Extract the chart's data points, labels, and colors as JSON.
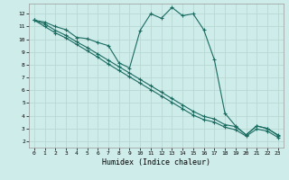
{
  "background_color": "#ceecea",
  "grid_color": "#b8d8d4",
  "line_color": "#1a6b60",
  "xlabel": "Humidex (Indice chaleur)",
  "xlim": [
    -0.5,
    23.5
  ],
  "ylim": [
    1.5,
    12.8
  ],
  "yticks": [
    2,
    3,
    4,
    5,
    6,
    7,
    8,
    9,
    10,
    11,
    12
  ],
  "xticks": [
    0,
    1,
    2,
    3,
    4,
    5,
    6,
    7,
    8,
    9,
    10,
    11,
    12,
    13,
    14,
    15,
    16,
    17,
    18,
    19,
    20,
    21,
    22,
    23
  ],
  "line1_x": [
    0,
    1,
    2,
    3,
    4,
    5,
    6,
    7,
    8,
    9,
    10,
    11,
    12,
    13,
    14,
    15,
    16,
    17,
    18,
    19,
    20,
    21,
    22,
    23
  ],
  "line1_y": [
    11.5,
    11.35,
    11.0,
    10.75,
    10.15,
    10.05,
    9.75,
    9.5,
    8.15,
    7.75,
    10.7,
    12.0,
    11.65,
    12.5,
    11.85,
    12.0,
    10.75,
    8.4,
    4.2,
    3.2,
    2.5,
    3.2,
    3.0,
    2.5
  ],
  "line2_x": [
    0,
    1,
    2,
    3,
    4,
    5,
    6,
    7,
    8,
    9,
    10,
    11,
    12,
    13,
    14,
    15,
    16,
    17,
    18,
    19,
    20,
    21,
    22,
    23
  ],
  "line2_y": [
    11.5,
    11.2,
    10.7,
    10.3,
    9.8,
    9.35,
    8.85,
    8.35,
    7.85,
    7.35,
    6.85,
    6.35,
    5.85,
    5.35,
    4.85,
    4.35,
    3.95,
    3.75,
    3.3,
    3.15,
    2.5,
    3.2,
    3.0,
    2.45
  ],
  "line3_x": [
    0,
    1,
    2,
    3,
    4,
    5,
    6,
    7,
    8,
    9,
    10,
    11,
    12,
    13,
    14,
    15,
    16,
    17,
    18,
    19,
    20,
    21,
    22,
    23
  ],
  "line3_y": [
    11.5,
    11.0,
    10.5,
    10.1,
    9.6,
    9.1,
    8.6,
    8.05,
    7.55,
    7.05,
    6.55,
    6.05,
    5.55,
    5.05,
    4.55,
    4.05,
    3.7,
    3.5,
    3.1,
    2.9,
    2.4,
    2.95,
    2.8,
    2.3
  ]
}
